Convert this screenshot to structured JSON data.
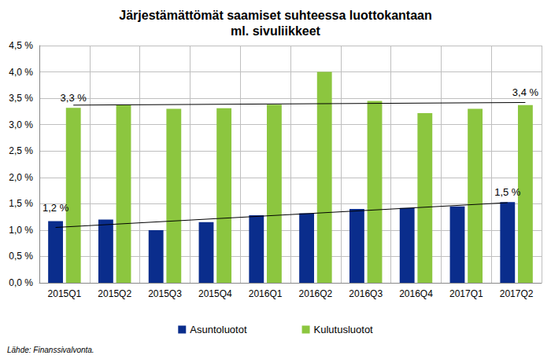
{
  "chart_data": {
    "type": "bar",
    "title": "Järjestämättömät saamiset suhteessa luottokantaan\nml. sivuliikkeet",
    "source": "Lähde: Finanssivalvonta.",
    "categories": [
      "2015Q1",
      "2015Q2",
      "2015Q3",
      "2015Q4",
      "2016Q1",
      "2016Q2",
      "2016Q3",
      "2016Q4",
      "2017Q1",
      "2017Q2"
    ],
    "series": [
      {
        "name": "Asuntoluotot",
        "color": "#0a2d8c",
        "values": [
          1.17,
          1.2,
          1.0,
          1.15,
          1.28,
          1.32,
          1.4,
          1.42,
          1.45,
          1.53
        ],
        "trend": {
          "start": 1.05,
          "end": 1.52
        }
      },
      {
        "name": "Kulutusluotot",
        "color": "#8cc63f",
        "values": [
          3.32,
          3.37,
          3.3,
          3.31,
          3.38,
          4.0,
          3.45,
          3.22,
          3.3,
          3.37
        ],
        "trend": {
          "start": 3.37,
          "end": 3.42
        }
      }
    ],
    "annotations": [
      {
        "text": "3,3 %",
        "series": "Kulutusluotot",
        "category": "2015Q1",
        "value": 3.3
      },
      {
        "text": "3,4 %",
        "series": "Kulutusluotot",
        "category": "2017Q2",
        "value": 3.4
      },
      {
        "text": "1,2 %",
        "series": "Asuntoluotot",
        "category": "2015Q1",
        "value": 1.2
      },
      {
        "text": "1,5 %",
        "series": "Asuntoluotot",
        "category": "2017Q2",
        "value": 1.5
      }
    ],
    "ylim": [
      0,
      4.5
    ],
    "yticks": [
      {
        "value": 0,
        "label": "0,0 %"
      },
      {
        "value": 0.5,
        "label": "0,5 %"
      },
      {
        "value": 1,
        "label": "1,0 %"
      },
      {
        "value": 1.5,
        "label": "1,5 %"
      },
      {
        "value": 2,
        "label": "2,0 %"
      },
      {
        "value": 2.5,
        "label": "2,5 %"
      },
      {
        "value": 3,
        "label": "3,0 %"
      },
      {
        "value": 3.5,
        "label": "3,5 %"
      },
      {
        "value": 4,
        "label": "4,0 %"
      },
      {
        "value": 4.5,
        "label": "4,5 %"
      }
    ],
    "grid": true,
    "legend": "bottom"
  }
}
